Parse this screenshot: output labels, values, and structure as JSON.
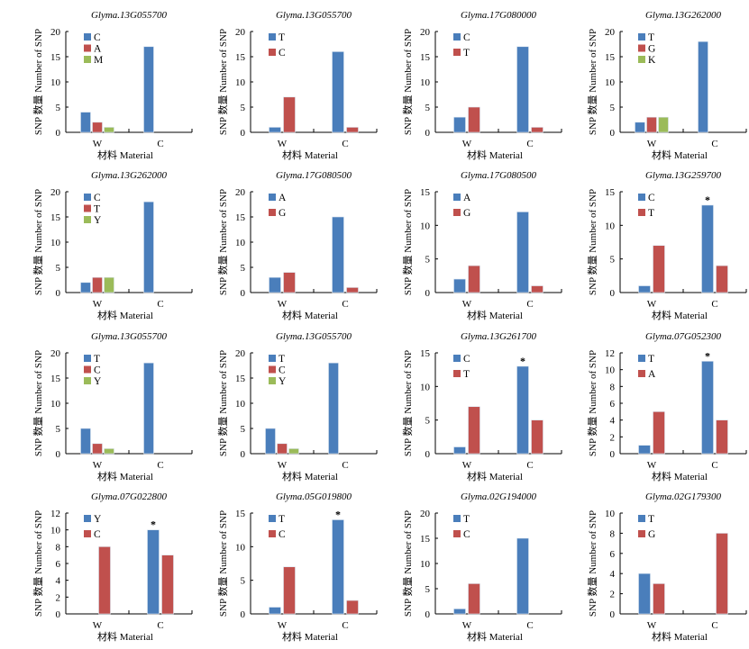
{
  "figure": {
    "xlabel": "材料  Material",
    "ylabel": "SNP 数量  Number of SNP",
    "colors": {
      "blue": "#4a7ebb",
      "red": "#c0504d",
      "green": "#9bbb59"
    }
  },
  "chart_data": [
    {
      "type": "bar",
      "title": "Glyma.13G055700",
      "categories": [
        "W",
        "C"
      ],
      "ylim": [
        0,
        20
      ],
      "yticks": [
        0,
        5,
        10,
        15,
        20
      ],
      "series": [
        {
          "name": "C",
          "color": "#4a7ebb",
          "values": [
            4,
            17
          ]
        },
        {
          "name": "A",
          "color": "#c0504d",
          "values": [
            2,
            0
          ]
        },
        {
          "name": "M",
          "color": "#9bbb59",
          "values": [
            1,
            0
          ]
        }
      ],
      "annotations": [],
      "legend": "top-left"
    },
    {
      "type": "bar",
      "title": "Glyma.13G055700",
      "categories": [
        "W",
        "C"
      ],
      "ylim": [
        0,
        20
      ],
      "yticks": [
        0,
        5,
        10,
        15,
        20
      ],
      "series": [
        {
          "name": "T",
          "color": "#4a7ebb",
          "values": [
            1,
            16
          ]
        },
        {
          "name": "C",
          "color": "#c0504d",
          "values": [
            7,
            1
          ]
        }
      ],
      "annotations": [],
      "legend": "top-left"
    },
    {
      "type": "bar",
      "title": "Glyma.17G080000",
      "categories": [
        "W",
        "C"
      ],
      "ylim": [
        0,
        20
      ],
      "yticks": [
        0,
        5,
        10,
        15,
        20
      ],
      "series": [
        {
          "name": "C",
          "color": "#4a7ebb",
          "values": [
            3,
            17
          ]
        },
        {
          "name": "T",
          "color": "#c0504d",
          "values": [
            5,
            1
          ]
        }
      ],
      "annotations": [],
      "legend": "top-left"
    },
    {
      "type": "bar",
      "title": "Glyma.13G262000",
      "categories": [
        "W",
        "C"
      ],
      "ylim": [
        0,
        20
      ],
      "yticks": [
        0,
        5,
        10,
        15,
        20
      ],
      "series": [
        {
          "name": "T",
          "color": "#4a7ebb",
          "values": [
            2,
            18
          ]
        },
        {
          "name": "G",
          "color": "#c0504d",
          "values": [
            3,
            0
          ]
        },
        {
          "name": "K",
          "color": "#9bbb59",
          "values": [
            3,
            0
          ]
        }
      ],
      "annotations": [],
      "legend": "top-left"
    },
    {
      "type": "bar",
      "title": "Glyma.13G262000",
      "categories": [
        "W",
        "C"
      ],
      "ylim": [
        0,
        20
      ],
      "yticks": [
        0,
        5,
        10,
        15,
        20
      ],
      "series": [
        {
          "name": "C",
          "color": "#4a7ebb",
          "values": [
            2,
            18
          ]
        },
        {
          "name": "T",
          "color": "#c0504d",
          "values": [
            3,
            0
          ]
        },
        {
          "name": "Y",
          "color": "#9bbb59",
          "values": [
            3,
            0
          ]
        }
      ],
      "annotations": [],
      "legend": "top-left"
    },
    {
      "type": "bar",
      "title": "Glyma.17G080500",
      "categories": [
        "W",
        "C"
      ],
      "ylim": [
        0,
        20
      ],
      "yticks": [
        0,
        5,
        10,
        15,
        20
      ],
      "series": [
        {
          "name": "A",
          "color": "#4a7ebb",
          "values": [
            3,
            15
          ]
        },
        {
          "name": "G",
          "color": "#c0504d",
          "values": [
            4,
            1
          ]
        }
      ],
      "annotations": [],
      "legend": "top-left"
    },
    {
      "type": "bar",
      "title": "Glyma.17G080500",
      "categories": [
        "W",
        "C"
      ],
      "ylim": [
        0,
        15
      ],
      "yticks": [
        0,
        5,
        10,
        15
      ],
      "series": [
        {
          "name": "A",
          "color": "#4a7ebb",
          "values": [
            2,
            12
          ]
        },
        {
          "name": "G",
          "color": "#c0504d",
          "values": [
            4,
            1
          ]
        }
      ],
      "annotations": [],
      "legend": "top-left"
    },
    {
      "type": "bar",
      "title": "Glyma.13G259700",
      "categories": [
        "W",
        "C"
      ],
      "ylim": [
        0,
        15
      ],
      "yticks": [
        0,
        5,
        10,
        15
      ],
      "series": [
        {
          "name": "C",
          "color": "#4a7ebb",
          "values": [
            1,
            13
          ]
        },
        {
          "name": "T",
          "color": "#c0504d",
          "values": [
            7,
            4
          ]
        }
      ],
      "annotations": [
        {
          "text": "*",
          "category": "C",
          "series": 0
        }
      ],
      "legend": "top-left"
    },
    {
      "type": "bar",
      "title": "Glyma.13G055700",
      "categories": [
        "W",
        "C"
      ],
      "ylim": [
        0,
        20
      ],
      "yticks": [
        0,
        5,
        10,
        15,
        20
      ],
      "series": [
        {
          "name": "T",
          "color": "#4a7ebb",
          "values": [
            5,
            18
          ]
        },
        {
          "name": "C",
          "color": "#c0504d",
          "values": [
            2,
            0
          ]
        },
        {
          "name": "Y",
          "color": "#9bbb59",
          "values": [
            1,
            0
          ]
        }
      ],
      "annotations": [],
      "legend": "top-left"
    },
    {
      "type": "bar",
      "title": "Glyma.13G055700",
      "categories": [
        "W",
        "C"
      ],
      "ylim": [
        0,
        20
      ],
      "yticks": [
        0,
        5,
        10,
        15,
        20
      ],
      "series": [
        {
          "name": "T",
          "color": "#4a7ebb",
          "values": [
            5,
            18
          ]
        },
        {
          "name": "C",
          "color": "#c0504d",
          "values": [
            2,
            0
          ]
        },
        {
          "name": "Y",
          "color": "#9bbb59",
          "values": [
            1,
            0
          ]
        }
      ],
      "annotations": [],
      "legend": "top-left"
    },
    {
      "type": "bar",
      "title": "Glyma.13G261700",
      "categories": [
        "W",
        "C"
      ],
      "ylim": [
        0,
        15
      ],
      "yticks": [
        0,
        5,
        10,
        15
      ],
      "series": [
        {
          "name": "C",
          "color": "#4a7ebb",
          "values": [
            1,
            13
          ]
        },
        {
          "name": "T",
          "color": "#c0504d",
          "values": [
            7,
            5
          ]
        }
      ],
      "annotations": [
        {
          "text": "*",
          "category": "C",
          "series": 0
        }
      ],
      "legend": "top-left"
    },
    {
      "type": "bar",
      "title": "Glyma.07G052300",
      "categories": [
        "W",
        "C"
      ],
      "ylim": [
        0,
        12
      ],
      "yticks": [
        0,
        2,
        4,
        6,
        8,
        10,
        12
      ],
      "series": [
        {
          "name": "T",
          "color": "#4a7ebb",
          "values": [
            1,
            11
          ]
        },
        {
          "name": "A",
          "color": "#c0504d",
          "values": [
            5,
            4
          ]
        }
      ],
      "annotations": [
        {
          "text": "*",
          "category": "C",
          "series": 0
        }
      ],
      "legend": "top-left"
    },
    {
      "type": "bar",
      "title": "Glyma.07G022800",
      "categories": [
        "W",
        "C"
      ],
      "ylim": [
        0,
        12
      ],
      "yticks": [
        0,
        2,
        4,
        6,
        8,
        10,
        12
      ],
      "series": [
        {
          "name": "Y",
          "color": "#4a7ebb",
          "values": [
            0,
            10
          ]
        },
        {
          "name": "C",
          "color": "#c0504d",
          "values": [
            8,
            7
          ]
        }
      ],
      "annotations": [
        {
          "text": "*",
          "category": "C",
          "series": 0
        }
      ],
      "legend": "top-left"
    },
    {
      "type": "bar",
      "title": "Glyma.05G019800",
      "categories": [
        "W",
        "C"
      ],
      "ylim": [
        0,
        15
      ],
      "yticks": [
        0,
        5,
        10,
        15
      ],
      "series": [
        {
          "name": "T",
          "color": "#4a7ebb",
          "values": [
            1,
            14
          ]
        },
        {
          "name": "C",
          "color": "#c0504d",
          "values": [
            7,
            2
          ]
        }
      ],
      "annotations": [
        {
          "text": "*",
          "category": "C",
          "series": 0
        }
      ],
      "legend": "top-left"
    },
    {
      "type": "bar",
      "title": "Glyma.02G194000",
      "categories": [
        "W",
        "C"
      ],
      "ylim": [
        0,
        20
      ],
      "yticks": [
        0,
        5,
        10,
        15,
        20
      ],
      "series": [
        {
          "name": "T",
          "color": "#4a7ebb",
          "values": [
            1,
            15
          ]
        },
        {
          "name": "C",
          "color": "#c0504d",
          "values": [
            6,
            0
          ]
        }
      ],
      "annotations": [],
      "legend": "top-left"
    },
    {
      "type": "bar",
      "title": "Glyma.02G179300",
      "categories": [
        "W",
        "C"
      ],
      "ylim": [
        0,
        10
      ],
      "yticks": [
        0,
        2,
        4,
        6,
        8,
        10
      ],
      "series": [
        {
          "name": "T",
          "color": "#4a7ebb",
          "values": [
            4,
            0
          ]
        },
        {
          "name": "G",
          "color": "#c0504d",
          "values": [
            3,
            8
          ]
        }
      ],
      "annotations": [],
      "legend": "top-left"
    }
  ]
}
